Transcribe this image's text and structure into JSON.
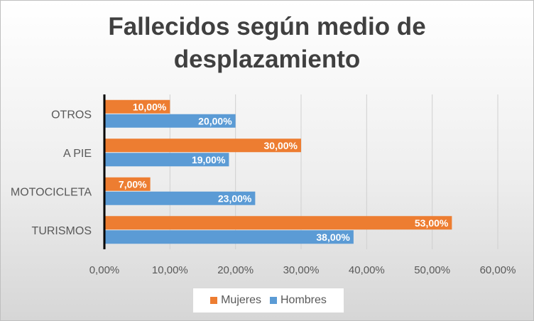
{
  "chart_data": {
    "type": "bar",
    "orientation": "horizontal",
    "title_line1": "Fallecidos según medio de",
    "title_line2": "desplazamiento",
    "categories": [
      "OTROS",
      "A PIE",
      "MOTOCICLETA",
      "TURISMOS"
    ],
    "series": [
      {
        "name": "Mujeres",
        "values": [
          10,
          30,
          7,
          53
        ],
        "labels": [
          "10,00%",
          "30,00%",
          "7,00%",
          "53,00%"
        ],
        "color": "#ed7d31"
      },
      {
        "name": "Hombres",
        "values": [
          20,
          19,
          23,
          38
        ],
        "labels": [
          "20,00%",
          "19,00%",
          "23,00%",
          "38,00%"
        ],
        "color": "#5b9bd5"
      }
    ],
    "x_ticks": [
      "0,00%",
      "10,00%",
      "20,00%",
      "30,00%",
      "40,00%",
      "50,00%",
      "60,00%"
    ],
    "xlim": [
      0,
      60
    ],
    "grid": true,
    "legend_position": "bottom"
  }
}
